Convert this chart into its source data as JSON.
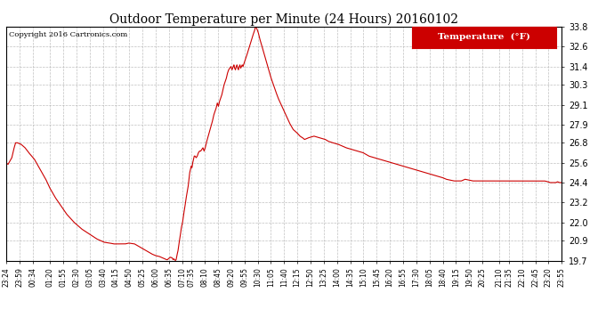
{
  "title": "Outdoor Temperature per Minute (24 Hours) 20160102",
  "copyright": "Copyright 2016 Cartronics.com",
  "legend_label": "Temperature  (°F)",
  "line_color": "#cc0000",
  "background_color": "#ffffff",
  "plot_bg_color": "#ffffff",
  "grid_color": "#b0b0b0",
  "ylim": [
    19.7,
    33.8
  ],
  "yticks": [
    19.7,
    20.9,
    22.0,
    23.2,
    24.4,
    25.6,
    26.8,
    27.9,
    29.1,
    30.3,
    31.4,
    32.6,
    33.8
  ],
  "xtick_labels": [
    "23:24",
    "23:59",
    "00:34",
    "01:20",
    "01:55",
    "02:30",
    "03:05",
    "03:40",
    "04:15",
    "04:50",
    "05:25",
    "06:00",
    "06:35",
    "07:10",
    "07:35",
    "08:10",
    "08:45",
    "09:20",
    "09:55",
    "10:30",
    "11:05",
    "11:40",
    "12:15",
    "12:50",
    "13:25",
    "14:00",
    "14:35",
    "15:10",
    "15:45",
    "16:20",
    "16:55",
    "17:30",
    "18:05",
    "18:40",
    "19:15",
    "19:50",
    "20:25",
    "21:10",
    "21:35",
    "22:10",
    "22:45",
    "23:20",
    "23:55"
  ],
  "xtick_positions_minutes": [
    0,
    35,
    70,
    116,
    151,
    186,
    221,
    256,
    291,
    326,
    361,
    396,
    431,
    466,
    491,
    526,
    561,
    596,
    631,
    666,
    701,
    736,
    771,
    806,
    841,
    876,
    911,
    946,
    981,
    1016,
    1051,
    1086,
    1121,
    1156,
    1191,
    1226,
    1261,
    1306,
    1331,
    1366,
    1401,
    1436,
    1471
  ],
  "temperature_data": [
    [
      0,
      25.6
    ],
    [
      5,
      25.5
    ],
    [
      15,
      25.9
    ],
    [
      20,
      26.4
    ],
    [
      25,
      26.8
    ],
    [
      30,
      26.8
    ],
    [
      40,
      26.7
    ],
    [
      50,
      26.5
    ],
    [
      60,
      26.2
    ],
    [
      75,
      25.8
    ],
    [
      90,
      25.2
    ],
    [
      105,
      24.6
    ],
    [
      115,
      24.1
    ],
    [
      120,
      23.9
    ],
    [
      130,
      23.5
    ],
    [
      145,
      23.0
    ],
    [
      160,
      22.5
    ],
    [
      180,
      22.0
    ],
    [
      200,
      21.6
    ],
    [
      220,
      21.3
    ],
    [
      240,
      21.0
    ],
    [
      260,
      20.8
    ],
    [
      275,
      20.75
    ],
    [
      285,
      20.7
    ],
    [
      300,
      20.7
    ],
    [
      315,
      20.7
    ],
    [
      325,
      20.75
    ],
    [
      340,
      20.7
    ],
    [
      355,
      20.5
    ],
    [
      370,
      20.3
    ],
    [
      385,
      20.1
    ],
    [
      395,
      20.0
    ],
    [
      405,
      19.95
    ],
    [
      415,
      19.85
    ],
    [
      420,
      19.8
    ],
    [
      425,
      19.75
    ],
    [
      427,
      19.75
    ],
    [
      429,
      19.8
    ],
    [
      432,
      19.85
    ],
    [
      435,
      19.9
    ],
    [
      440,
      19.85
    ],
    [
      442,
      19.75
    ],
    [
      444,
      19.8
    ],
    [
      446,
      19.75
    ],
    [
      448,
      19.7
    ],
    [
      450,
      19.75
    ],
    [
      452,
      20.0
    ],
    [
      455,
      20.3
    ],
    [
      458,
      20.8
    ],
    [
      461,
      21.2
    ],
    [
      464,
      21.7
    ],
    [
      467,
      22.0
    ],
    [
      470,
      22.5
    ],
    [
      473,
      22.9
    ],
    [
      476,
      23.4
    ],
    [
      479,
      23.8
    ],
    [
      482,
      24.2
    ],
    [
      484,
      24.6
    ],
    [
      486,
      25.0
    ],
    [
      488,
      25.2
    ],
    [
      490,
      25.4
    ],
    [
      492,
      25.3
    ],
    [
      494,
      25.6
    ],
    [
      496,
      25.8
    ],
    [
      498,
      26.0
    ],
    [
      500,
      26.0
    ],
    [
      503,
      25.9
    ],
    [
      506,
      26.0
    ],
    [
      509,
      26.2
    ],
    [
      512,
      26.3
    ],
    [
      515,
      26.3
    ],
    [
      518,
      26.4
    ],
    [
      521,
      26.5
    ],
    [
      524,
      26.3
    ],
    [
      527,
      26.5
    ],
    [
      530,
      26.8
    ],
    [
      535,
      27.2
    ],
    [
      540,
      27.6
    ],
    [
      545,
      28.0
    ],
    [
      550,
      28.5
    ],
    [
      553,
      28.7
    ],
    [
      556,
      28.9
    ],
    [
      559,
      29.2
    ],
    [
      562,
      29.0
    ],
    [
      565,
      29.3
    ],
    [
      568,
      29.5
    ],
    [
      571,
      29.7
    ],
    [
      574,
      30.0
    ],
    [
      577,
      30.3
    ],
    [
      580,
      30.5
    ],
    [
      583,
      30.7
    ],
    [
      586,
      31.0
    ],
    [
      589,
      31.2
    ],
    [
      592,
      31.3
    ],
    [
      595,
      31.4
    ],
    [
      598,
      31.2
    ],
    [
      601,
      31.4
    ],
    [
      603,
      31.5
    ],
    [
      605,
      31.3
    ],
    [
      607,
      31.2
    ],
    [
      609,
      31.4
    ],
    [
      611,
      31.5
    ],
    [
      613,
      31.3
    ],
    [
      615,
      31.2
    ],
    [
      617,
      31.4
    ],
    [
      619,
      31.5
    ],
    [
      621,
      31.3
    ],
    [
      623,
      31.4
    ],
    [
      625,
      31.5
    ],
    [
      627,
      31.4
    ],
    [
      630,
      31.6
    ],
    [
      633,
      31.8
    ],
    [
      636,
      32.0
    ],
    [
      640,
      32.3
    ],
    [
      644,
      32.6
    ],
    [
      648,
      32.9
    ],
    [
      652,
      33.2
    ],
    [
      655,
      33.4
    ],
    [
      658,
      33.6
    ],
    [
      660,
      33.8
    ],
    [
      662,
      33.75
    ],
    [
      665,
      33.6
    ],
    [
      668,
      33.4
    ],
    [
      671,
      33.1
    ],
    [
      675,
      32.8
    ],
    [
      680,
      32.4
    ],
    [
      685,
      32.0
    ],
    [
      690,
      31.6
    ],
    [
      695,
      31.2
    ],
    [
      700,
      30.8
    ],
    [
      706,
      30.4
    ],
    [
      712,
      30.0
    ],
    [
      720,
      29.5
    ],
    [
      730,
      29.0
    ],
    [
      740,
      28.5
    ],
    [
      750,
      28.0
    ],
    [
      760,
      27.6
    ],
    [
      770,
      27.4
    ],
    [
      778,
      27.2
    ],
    [
      785,
      27.1
    ],
    [
      790,
      27.0
    ],
    [
      795,
      27.05
    ],
    [
      800,
      27.1
    ],
    [
      808,
      27.15
    ],
    [
      815,
      27.2
    ],
    [
      822,
      27.15
    ],
    [
      830,
      27.1
    ],
    [
      838,
      27.05
    ],
    [
      845,
      27.0
    ],
    [
      852,
      26.9
    ],
    [
      858,
      26.85
    ],
    [
      865,
      26.8
    ],
    [
      872,
      26.75
    ],
    [
      880,
      26.7
    ],
    [
      890,
      26.6
    ],
    [
      900,
      26.5
    ],
    [
      915,
      26.4
    ],
    [
      930,
      26.3
    ],
    [
      945,
      26.2
    ],
    [
      960,
      26.0
    ],
    [
      975,
      25.9
    ],
    [
      990,
      25.8
    ],
    [
      1005,
      25.7
    ],
    [
      1020,
      25.6
    ],
    [
      1035,
      25.5
    ],
    [
      1050,
      25.4
    ],
    [
      1065,
      25.3
    ],
    [
      1080,
      25.2
    ],
    [
      1095,
      25.1
    ],
    [
      1110,
      25.0
    ],
    [
      1125,
      24.9
    ],
    [
      1140,
      24.8
    ],
    [
      1155,
      24.7
    ],
    [
      1165,
      24.6
    ],
    [
      1175,
      24.55
    ],
    [
      1185,
      24.5
    ],
    [
      1195,
      24.5
    ],
    [
      1205,
      24.5
    ],
    [
      1215,
      24.6
    ],
    [
      1225,
      24.55
    ],
    [
      1235,
      24.5
    ],
    [
      1245,
      24.5
    ],
    [
      1255,
      24.5
    ],
    [
      1265,
      24.5
    ],
    [
      1275,
      24.5
    ],
    [
      1285,
      24.5
    ],
    [
      1295,
      24.5
    ],
    [
      1305,
      24.5
    ],
    [
      1320,
      24.5
    ],
    [
      1335,
      24.5
    ],
    [
      1350,
      24.5
    ],
    [
      1365,
      24.5
    ],
    [
      1380,
      24.5
    ],
    [
      1395,
      24.5
    ],
    [
      1410,
      24.5
    ],
    [
      1425,
      24.5
    ],
    [
      1435,
      24.45
    ],
    [
      1440,
      24.4
    ],
    [
      1455,
      24.4
    ],
    [
      1460,
      24.45
    ],
    [
      1465,
      24.4
    ],
    [
      1470,
      24.4
    ]
  ],
  "num_minutes": 1471
}
